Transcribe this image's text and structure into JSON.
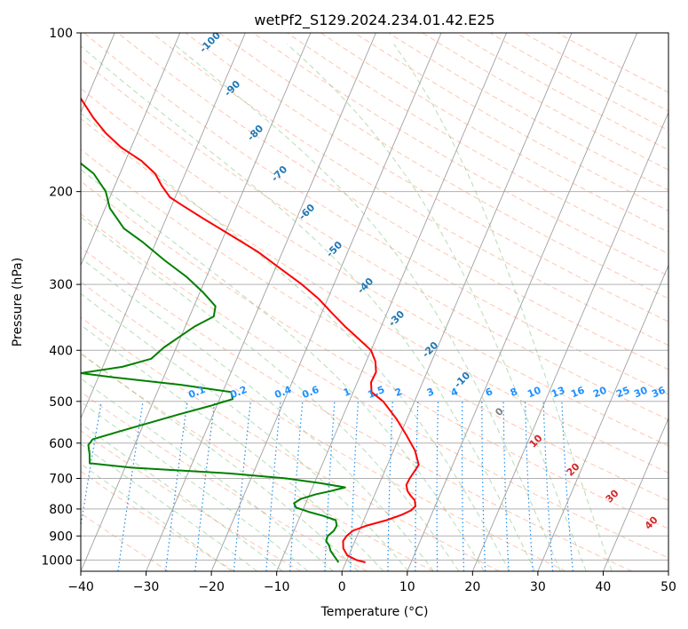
{
  "chart_data": {
    "type": "line",
    "subtype": "skew-t log-p",
    "title": "wetPf2_S129.2024.234.01.42.E25",
    "xlabel": "Temperature (°C)",
    "ylabel": "Pressure (hPa)",
    "xlim": [
      -40,
      50
    ],
    "ylim": [
      1050,
      100
    ],
    "yscale": "log",
    "xticks": [
      "−40",
      "−30",
      "−20",
      "−10",
      "0",
      "10",
      "20",
      "30",
      "40",
      "50"
    ],
    "yticks": [
      {
        "p": 100,
        "label": "100"
      },
      {
        "p": 200,
        "label": "200"
      },
      {
        "p": 300,
        "label": "300"
      },
      {
        "p": 400,
        "label": "400"
      },
      {
        "p": 500,
        "label": "500"
      },
      {
        "p": 600,
        "label": "600"
      },
      {
        "p": 700,
        "label": "700"
      },
      {
        "p": 800,
        "label": "800"
      },
      {
        "p": 900,
        "label": "900"
      },
      {
        "p": 1000,
        "label": "1000"
      }
    ],
    "grid": true,
    "colors": {
      "temperature": "#ff0000",
      "dewpoint": "#008000",
      "dry_adiabat": "#ff7f50",
      "moist_adiabat": "#2ca02c",
      "mixing_ratio": "#1f8ce6",
      "isotherm": "#888888",
      "isotherm_label": "#1f77b4",
      "mixing_label": "#1e90ff",
      "warm_label": "#d62728"
    },
    "series": [
      {
        "role": "temperature",
        "points": [
          [
            1010,
            3.0
          ],
          [
            1000,
            1.5
          ],
          [
            980,
            -0.2
          ],
          [
            950,
            -1.3
          ],
          [
            920,
            -1.8
          ],
          [
            900,
            -1.6
          ],
          [
            880,
            -1.0
          ],
          [
            860,
            0.8
          ],
          [
            840,
            3.5
          ],
          [
            820,
            5.5
          ],
          [
            805,
            6.6
          ],
          [
            790,
            7.0
          ],
          [
            770,
            6.5
          ],
          [
            755,
            5.6
          ],
          [
            740,
            4.8
          ],
          [
            720,
            4.2
          ],
          [
            700,
            4.3
          ],
          [
            660,
            4.8
          ],
          [
            620,
            3.3
          ],
          [
            580,
            1.0
          ],
          [
            540,
            -1.6
          ],
          [
            500,
            -4.8
          ],
          [
            480,
            -7.2
          ],
          [
            460,
            -7.9
          ],
          [
            440,
            -7.8
          ],
          [
            420,
            -8.6
          ],
          [
            400,
            -10.0
          ],
          [
            380,
            -12.7
          ],
          [
            360,
            -15.6
          ],
          [
            340,
            -18.4
          ],
          [
            320,
            -21.3
          ],
          [
            300,
            -24.9
          ],
          [
            280,
            -29.2
          ],
          [
            260,
            -33.8
          ],
          [
            240,
            -39.6
          ],
          [
            225,
            -44.3
          ],
          [
            212,
            -48.5
          ],
          [
            205,
            -50.8
          ],
          [
            195,
            -52.8
          ],
          [
            185,
            -54.6
          ],
          [
            175,
            -57.5
          ],
          [
            165,
            -61.5
          ],
          [
            155,
            -64.8
          ],
          [
            145,
            -67.7
          ],
          [
            135,
            -70.4
          ],
          [
            125,
            -73.4
          ],
          [
            115,
            -76.8
          ],
          [
            108,
            -79.8
          ],
          [
            103,
            -82.0
          ],
          [
            100,
            -83.3
          ]
        ]
      },
      {
        "role": "dewpoint",
        "points": [
          [
            1010,
            -1.1
          ],
          [
            1000,
            -1.5
          ],
          [
            980,
            -2.3
          ],
          [
            960,
            -3.1
          ],
          [
            940,
            -3.6
          ],
          [
            920,
            -4.4
          ],
          [
            900,
            -4.5
          ],
          [
            880,
            -3.9
          ],
          [
            860,
            -3.8
          ],
          [
            840,
            -4.3
          ],
          [
            825,
            -6.4
          ],
          [
            810,
            -9.0
          ],
          [
            795,
            -11.2
          ],
          [
            780,
            -11.8
          ],
          [
            765,
            -11.0
          ],
          [
            750,
            -9.0
          ],
          [
            740,
            -7.0
          ],
          [
            728,
            -5.0
          ],
          [
            715,
            -8.9
          ],
          [
            700,
            -14.6
          ],
          [
            685,
            -23.6
          ],
          [
            668,
            -39.0
          ],
          [
            655,
            -45.7
          ],
          [
            630,
            -46.3
          ],
          [
            605,
            -47.1
          ],
          [
            590,
            -46.8
          ],
          [
            570,
            -43.2
          ],
          [
            550,
            -39.4
          ],
          [
            530,
            -35.4
          ],
          [
            510,
            -31.0
          ],
          [
            495,
            -28.0
          ],
          [
            480,
            -28.7
          ],
          [
            465,
            -36.9
          ],
          [
            450,
            -47.8
          ],
          [
            442,
            -53.0
          ],
          [
            430,
            -47.0
          ],
          [
            415,
            -43.1
          ],
          [
            395,
            -41.9
          ],
          [
            378,
            -40.3
          ],
          [
            360,
            -38.5
          ],
          [
            345,
            -36.3
          ],
          [
            330,
            -36.7
          ],
          [
            310,
            -39.6
          ],
          [
            290,
            -43.1
          ],
          [
            270,
            -47.5
          ],
          [
            250,
            -51.9
          ],
          [
            235,
            -55.8
          ],
          [
            215,
            -59.3
          ],
          [
            200,
            -61.0
          ],
          [
            185,
            -64.0
          ],
          [
            172,
            -68.3
          ],
          [
            165,
            -71.0
          ],
          [
            160,
            -72.5
          ],
          [
            155,
            -73.0
          ],
          [
            148,
            -73.2
          ],
          [
            142,
            -73.3
          ],
          [
            135,
            -73.7
          ],
          [
            127,
            -73.6
          ],
          [
            120,
            -73.6
          ],
          [
            113,
            -74.0
          ],
          [
            108,
            -74.5
          ],
          [
            104,
            -75.5
          ],
          [
            100,
            -76.8
          ]
        ]
      }
    ],
    "isotherm_labels": [
      "-100",
      "-90",
      "-80",
      "-70",
      "-60",
      "-50",
      "-40",
      "-30",
      "-20",
      "-10",
      "0",
      "10",
      "20",
      "30",
      "40"
    ],
    "mixing_ratio_labels": [
      "0.1",
      "0.2",
      "0.4",
      "0.6",
      "1",
      "1.5",
      "2",
      "3",
      "4",
      "6",
      "8",
      "10",
      "13",
      "16",
      "20",
      "25",
      "30",
      "36"
    ]
  }
}
